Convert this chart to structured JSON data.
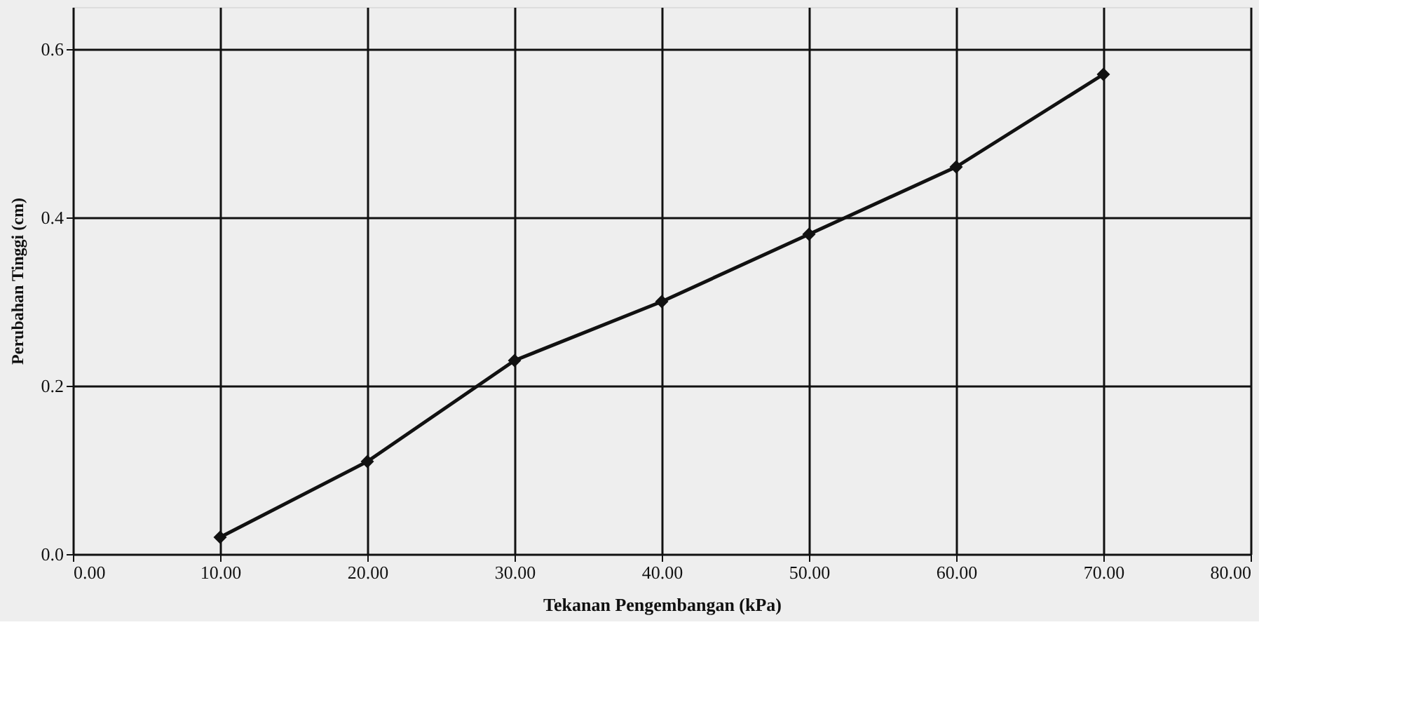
{
  "chart_data": {
    "type": "line",
    "xlabel": "Tekanan Pengembangan (kPa)",
    "ylabel": "Perubahan Tinggi (cm)",
    "x": [
      10,
      20,
      30,
      40,
      50,
      60,
      70
    ],
    "series": [
      {
        "color": "#111111",
        "values": [
          0.02,
          0.11,
          0.23,
          0.3,
          0.38,
          0.46,
          0.57
        ]
      }
    ],
    "xlim": [
      0,
      80
    ],
    "xticks": [
      {
        "value": 0,
        "label": "0.00"
      },
      {
        "value": 10,
        "label": "10.00"
      },
      {
        "value": 20,
        "label": "20.00"
      },
      {
        "value": 30,
        "label": "30.00"
      },
      {
        "value": 40,
        "label": "40.00"
      },
      {
        "value": 50,
        "label": "50.00"
      },
      {
        "value": 60,
        "label": "60.00"
      },
      {
        "value": 70,
        "label": "70.00"
      },
      {
        "value": 80,
        "label": "80.00"
      }
    ],
    "ylim": [
      0,
      0.65
    ],
    "yticks": [
      {
        "value": 0,
        "label": "0.0"
      },
      {
        "value": 0.2,
        "label": "0.2"
      },
      {
        "value": 0.4,
        "label": "0.4"
      },
      {
        "value": 0.6,
        "label": "0.6"
      }
    ],
    "grid": true,
    "marker": "diamond",
    "line_style": "solid"
  }
}
